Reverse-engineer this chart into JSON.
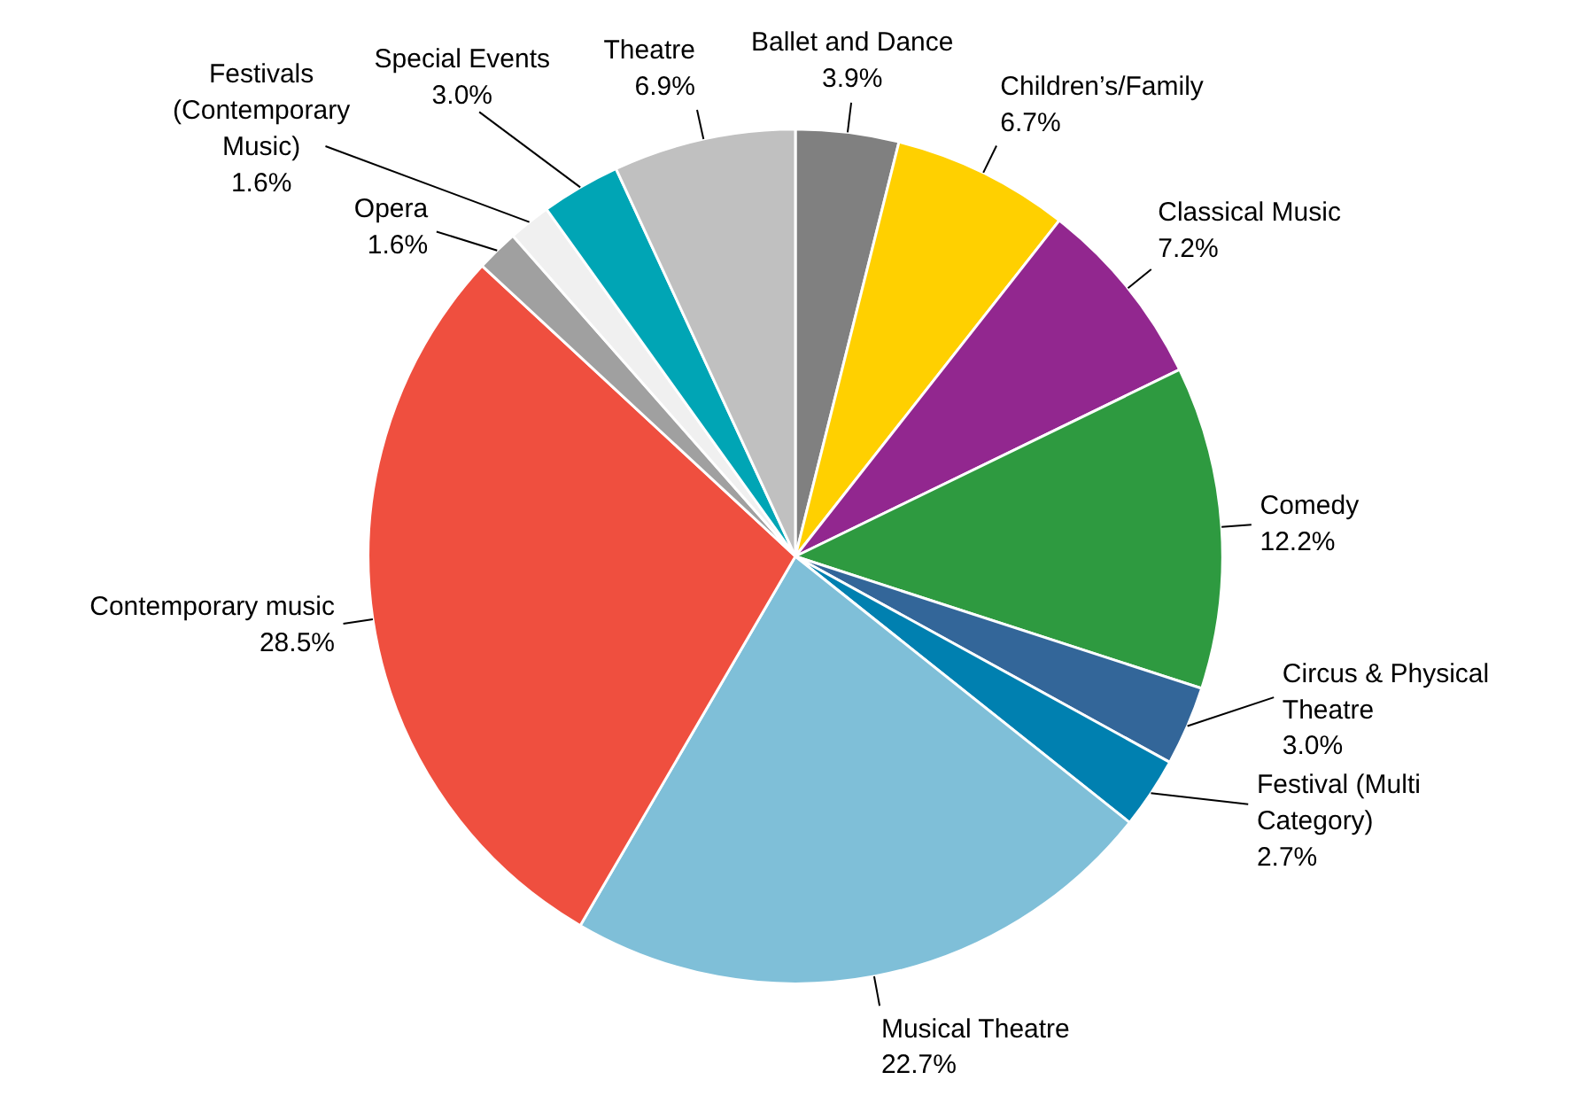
{
  "chart_data": {
    "type": "pie",
    "categories": [
      "Ballet and Dance",
      "Children’s/Family",
      "Classical Music",
      "Comedy",
      "Circus & Physical\nTheatre",
      "Festival (Multi\nCategory)",
      "Musical Theatre",
      "Contemporary music",
      "Opera",
      "Festivals\n(Contemporary\nMusic)",
      "Special Events",
      "Theatre"
    ],
    "values": [
      3.9,
      6.7,
      7.2,
      12.2,
      3.0,
      2.7,
      22.7,
      28.5,
      1.6,
      1.6,
      3.0,
      6.9
    ],
    "value_labels": [
      "3.9%",
      "6.7%",
      "7.2%",
      "12.2%",
      "3.0%",
      "2.7%",
      "22.7%",
      "28.5%",
      "1.6%",
      "1.6%",
      "3.0%",
      "6.9%"
    ],
    "colors": [
      "#808080",
      "#ffd000",
      "#92278f",
      "#2e9a40",
      "#336699",
      "#0080b0",
      "#7fbfd8",
      "#ef4f3f",
      "#a0a0a0",
      "#f0f0f0",
      "#00a5b5",
      "#c0c0c0"
    ]
  }
}
